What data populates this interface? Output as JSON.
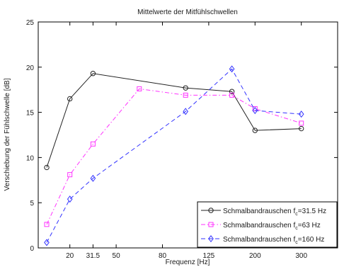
{
  "chart_data": {
    "type": "line",
    "title": "Mittelwerte der Mitfühlschwellen",
    "xlabel": "Frequenz [Hz]",
    "ylabel": "Verschiebung der Fühlschwelle [dB]",
    "x_scale": "categorical-equally-spaced",
    "x_positions": [
      "16",
      "20",
      "31.5",
      "50",
      "63",
      "80",
      "100",
      "125",
      "160",
      "200",
      "250",
      "300"
    ],
    "x_tick_labels": [
      "20",
      "31.5",
      "50",
      "80",
      "125",
      "200",
      "300"
    ],
    "y_ticks": [
      "0",
      "5",
      "10",
      "15",
      "20",
      "25"
    ],
    "ylim": [
      0,
      25
    ],
    "grid": false,
    "legend_position": "bottom-right",
    "series": [
      {
        "name_prefix": "Schmalbandrauschen f",
        "name_sub": "c",
        "name_suffix": "=31.5 Hz",
        "color": "#222222",
        "dash": "solid",
        "marker": "circle",
        "x": [
          "16",
          "20",
          "31.5",
          "100",
          "160",
          "200",
          "300"
        ],
        "values": [
          8.9,
          16.5,
          19.3,
          17.7,
          17.3,
          13.0,
          13.2
        ]
      },
      {
        "name_prefix": "Schmalbandrauschen f",
        "name_sub": "c",
        "name_suffix": "=63 Hz",
        "color": "#ff33ff",
        "dash": "dashdot",
        "marker": "square",
        "x": [
          "16",
          "20",
          "31.5",
          "63",
          "100",
          "160",
          "200",
          "300"
        ],
        "values": [
          2.6,
          8.1,
          11.5,
          17.6,
          16.9,
          16.9,
          15.4,
          13.8
        ]
      },
      {
        "name_prefix": "Schmalbandrauschen f",
        "name_sub": "c",
        "name_suffix": "=160 Hz",
        "color": "#3333ff",
        "dash": "dashed",
        "marker": "diamond",
        "x": [
          "16",
          "20",
          "31.5",
          "100",
          "160",
          "200",
          "300"
        ],
        "values": [
          0.6,
          5.4,
          7.7,
          15.1,
          19.8,
          15.2,
          14.8
        ]
      }
    ]
  }
}
